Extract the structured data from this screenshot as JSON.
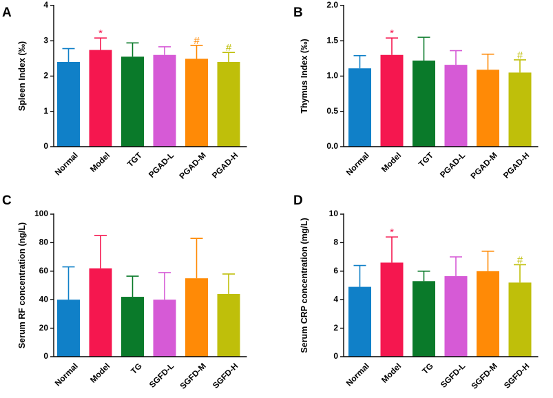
{
  "colors": [
    "#1080c8",
    "#f5174f",
    "#0a7a2a",
    "#d65ad6",
    "#ff8a06",
    "#bfbf0a"
  ],
  "chart_data": [
    {
      "panel": "A",
      "type": "bar",
      "ylabel": "Spleen Index (‰)",
      "ylim": [
        0,
        4
      ],
      "yticks": [
        "0",
        "1",
        "2",
        "3",
        "4"
      ],
      "categories": [
        "Normal",
        "Model",
        "TGT",
        "PGAD-L",
        "PGAD-M",
        "PGAD-H"
      ],
      "values": [
        2.4,
        2.74,
        2.55,
        2.6,
        2.49,
        2.4
      ],
      "errors": [
        0.38,
        0.34,
        0.39,
        0.23,
        0.38,
        0.27
      ],
      "annotations": [
        "",
        "*",
        "",
        "",
        "#",
        "#"
      ]
    },
    {
      "panel": "B",
      "type": "bar",
      "ylabel": "Thymus Index (‰)",
      "ylim": [
        0,
        2
      ],
      "yticks": [
        "0.0",
        "0.5",
        "1.0",
        "1.5",
        "2.0"
      ],
      "categories": [
        "Normal",
        "Model",
        "TGT",
        "PGAD-L",
        "PGAD-M",
        "PGAD-H"
      ],
      "values": [
        1.11,
        1.3,
        1.22,
        1.16,
        1.09,
        1.05
      ],
      "errors": [
        0.18,
        0.24,
        0.33,
        0.2,
        0.22,
        0.18
      ],
      "annotations": [
        "",
        "*",
        "",
        "",
        "",
        "#"
      ]
    },
    {
      "panel": "C",
      "type": "bar",
      "ylabel": "Serum RF concentration (ng/L)",
      "ylim": [
        0,
        100
      ],
      "yticks": [
        "0",
        "20",
        "40",
        "60",
        "80",
        "100"
      ],
      "categories": [
        "Normal",
        "Model",
        "TG",
        "SGFD-L",
        "SGFD-M",
        "SGFD-H"
      ],
      "values": [
        40,
        62,
        42,
        40,
        55,
        44
      ],
      "errors": [
        23,
        23,
        14.5,
        19,
        28,
        14
      ],
      "annotations": [
        "",
        "",
        "",
        "",
        "",
        ""
      ]
    },
    {
      "panel": "D",
      "type": "bar",
      "ylabel": "Serum CRP concentration (mg/L)",
      "ylim": [
        0,
        10
      ],
      "yticks": [
        "0",
        "2",
        "4",
        "6",
        "8",
        "10"
      ],
      "categories": [
        "Normal",
        "Model",
        "TG",
        "SGFD-L",
        "SGFD-M",
        "SGFD-H"
      ],
      "values": [
        4.9,
        6.6,
        5.3,
        5.65,
        6.0,
        5.2
      ],
      "errors": [
        1.5,
        1.8,
        0.7,
        1.35,
        1.4,
        1.25
      ],
      "annotations": [
        "",
        "*",
        "",
        "",
        "",
        "#"
      ]
    }
  ]
}
